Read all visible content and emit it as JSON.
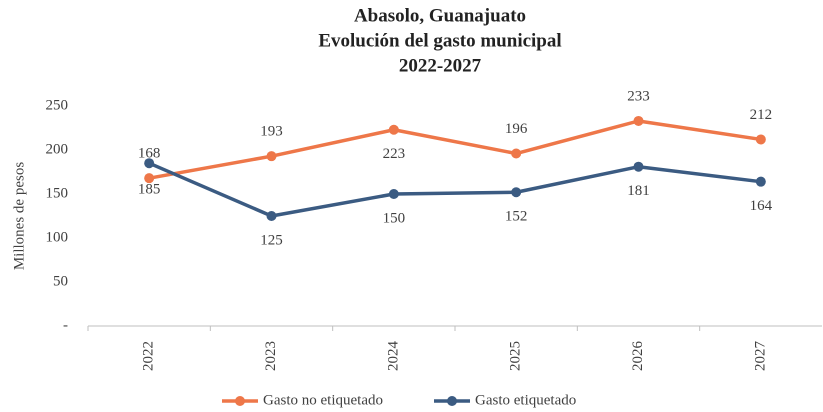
{
  "chart_data": {
    "type": "line",
    "title": [
      "Abasolo, Guanajuato",
      "Evolución del gasto municipal",
      "2022-2027"
    ],
    "y_label": "Millones de pesos",
    "categories": [
      "2022",
      "2023",
      "2024",
      "2025",
      "2026",
      "2027"
    ],
    "series": [
      {
        "name": "Gasto no etiquetado",
        "color": "#ee7749",
        "values": [
          168,
          193,
          223,
          196,
          233,
          212
        ]
      },
      {
        "name": "Gasto etiquetado",
        "color": "#3b5b82",
        "values": [
          185,
          125,
          150,
          152,
          181,
          164
        ]
      }
    ],
    "ylim": [
      0,
      250
    ],
    "yticks": [
      {
        "value": 0,
        "label": "-"
      },
      50,
      100,
      150,
      200,
      250
    ],
    "grid": false,
    "legend": "bottom"
  }
}
